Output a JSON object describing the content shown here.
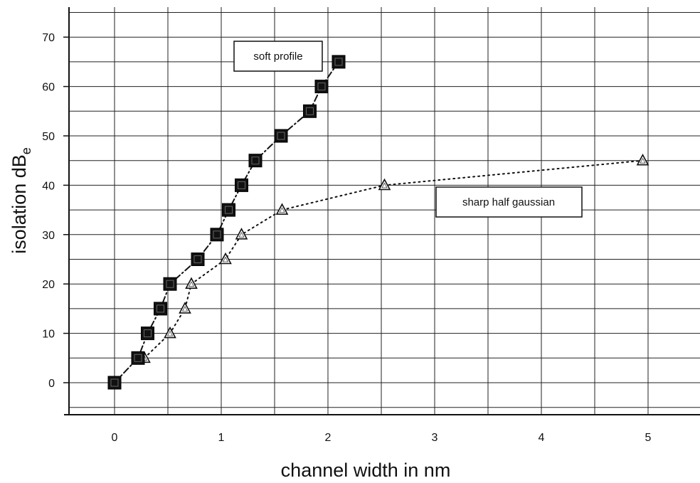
{
  "chart_data": {
    "type": "scatter",
    "xlabel": "channel width in nm",
    "ylabel_main": "isolation dB",
    "ylabel_sub": "e",
    "xlim": [
      -0.5,
      5.5
    ],
    "ylim": [
      -6,
      76
    ],
    "x_ticks": [
      0,
      1,
      2,
      3,
      4,
      5
    ],
    "y_ticks": [
      0,
      10,
      20,
      30,
      40,
      50,
      60,
      70
    ],
    "grid": true,
    "series": [
      {
        "name": "soft profile",
        "marker": "square",
        "line": "dash-dot",
        "color": "#111111",
        "x": [
          0,
          0.22,
          0.31,
          0.43,
          0.52,
          0.78,
          0.96,
          1.07,
          1.19,
          1.32,
          1.56,
          1.83,
          1.94,
          2.1
        ],
        "y": [
          0,
          5,
          10,
          15,
          20,
          25,
          30,
          35,
          40,
          45,
          50,
          55,
          60,
          65
        ]
      },
      {
        "name": "sharp half gaussian",
        "marker": "triangle",
        "line": "dotted",
        "color": "#111111",
        "x": [
          0.28,
          0.52,
          0.66,
          0.72,
          1.04,
          1.19,
          1.57,
          2.53,
          4.95
        ],
        "y": [
          5,
          10,
          15,
          20,
          25,
          30,
          35,
          40,
          45
        ]
      }
    ]
  }
}
